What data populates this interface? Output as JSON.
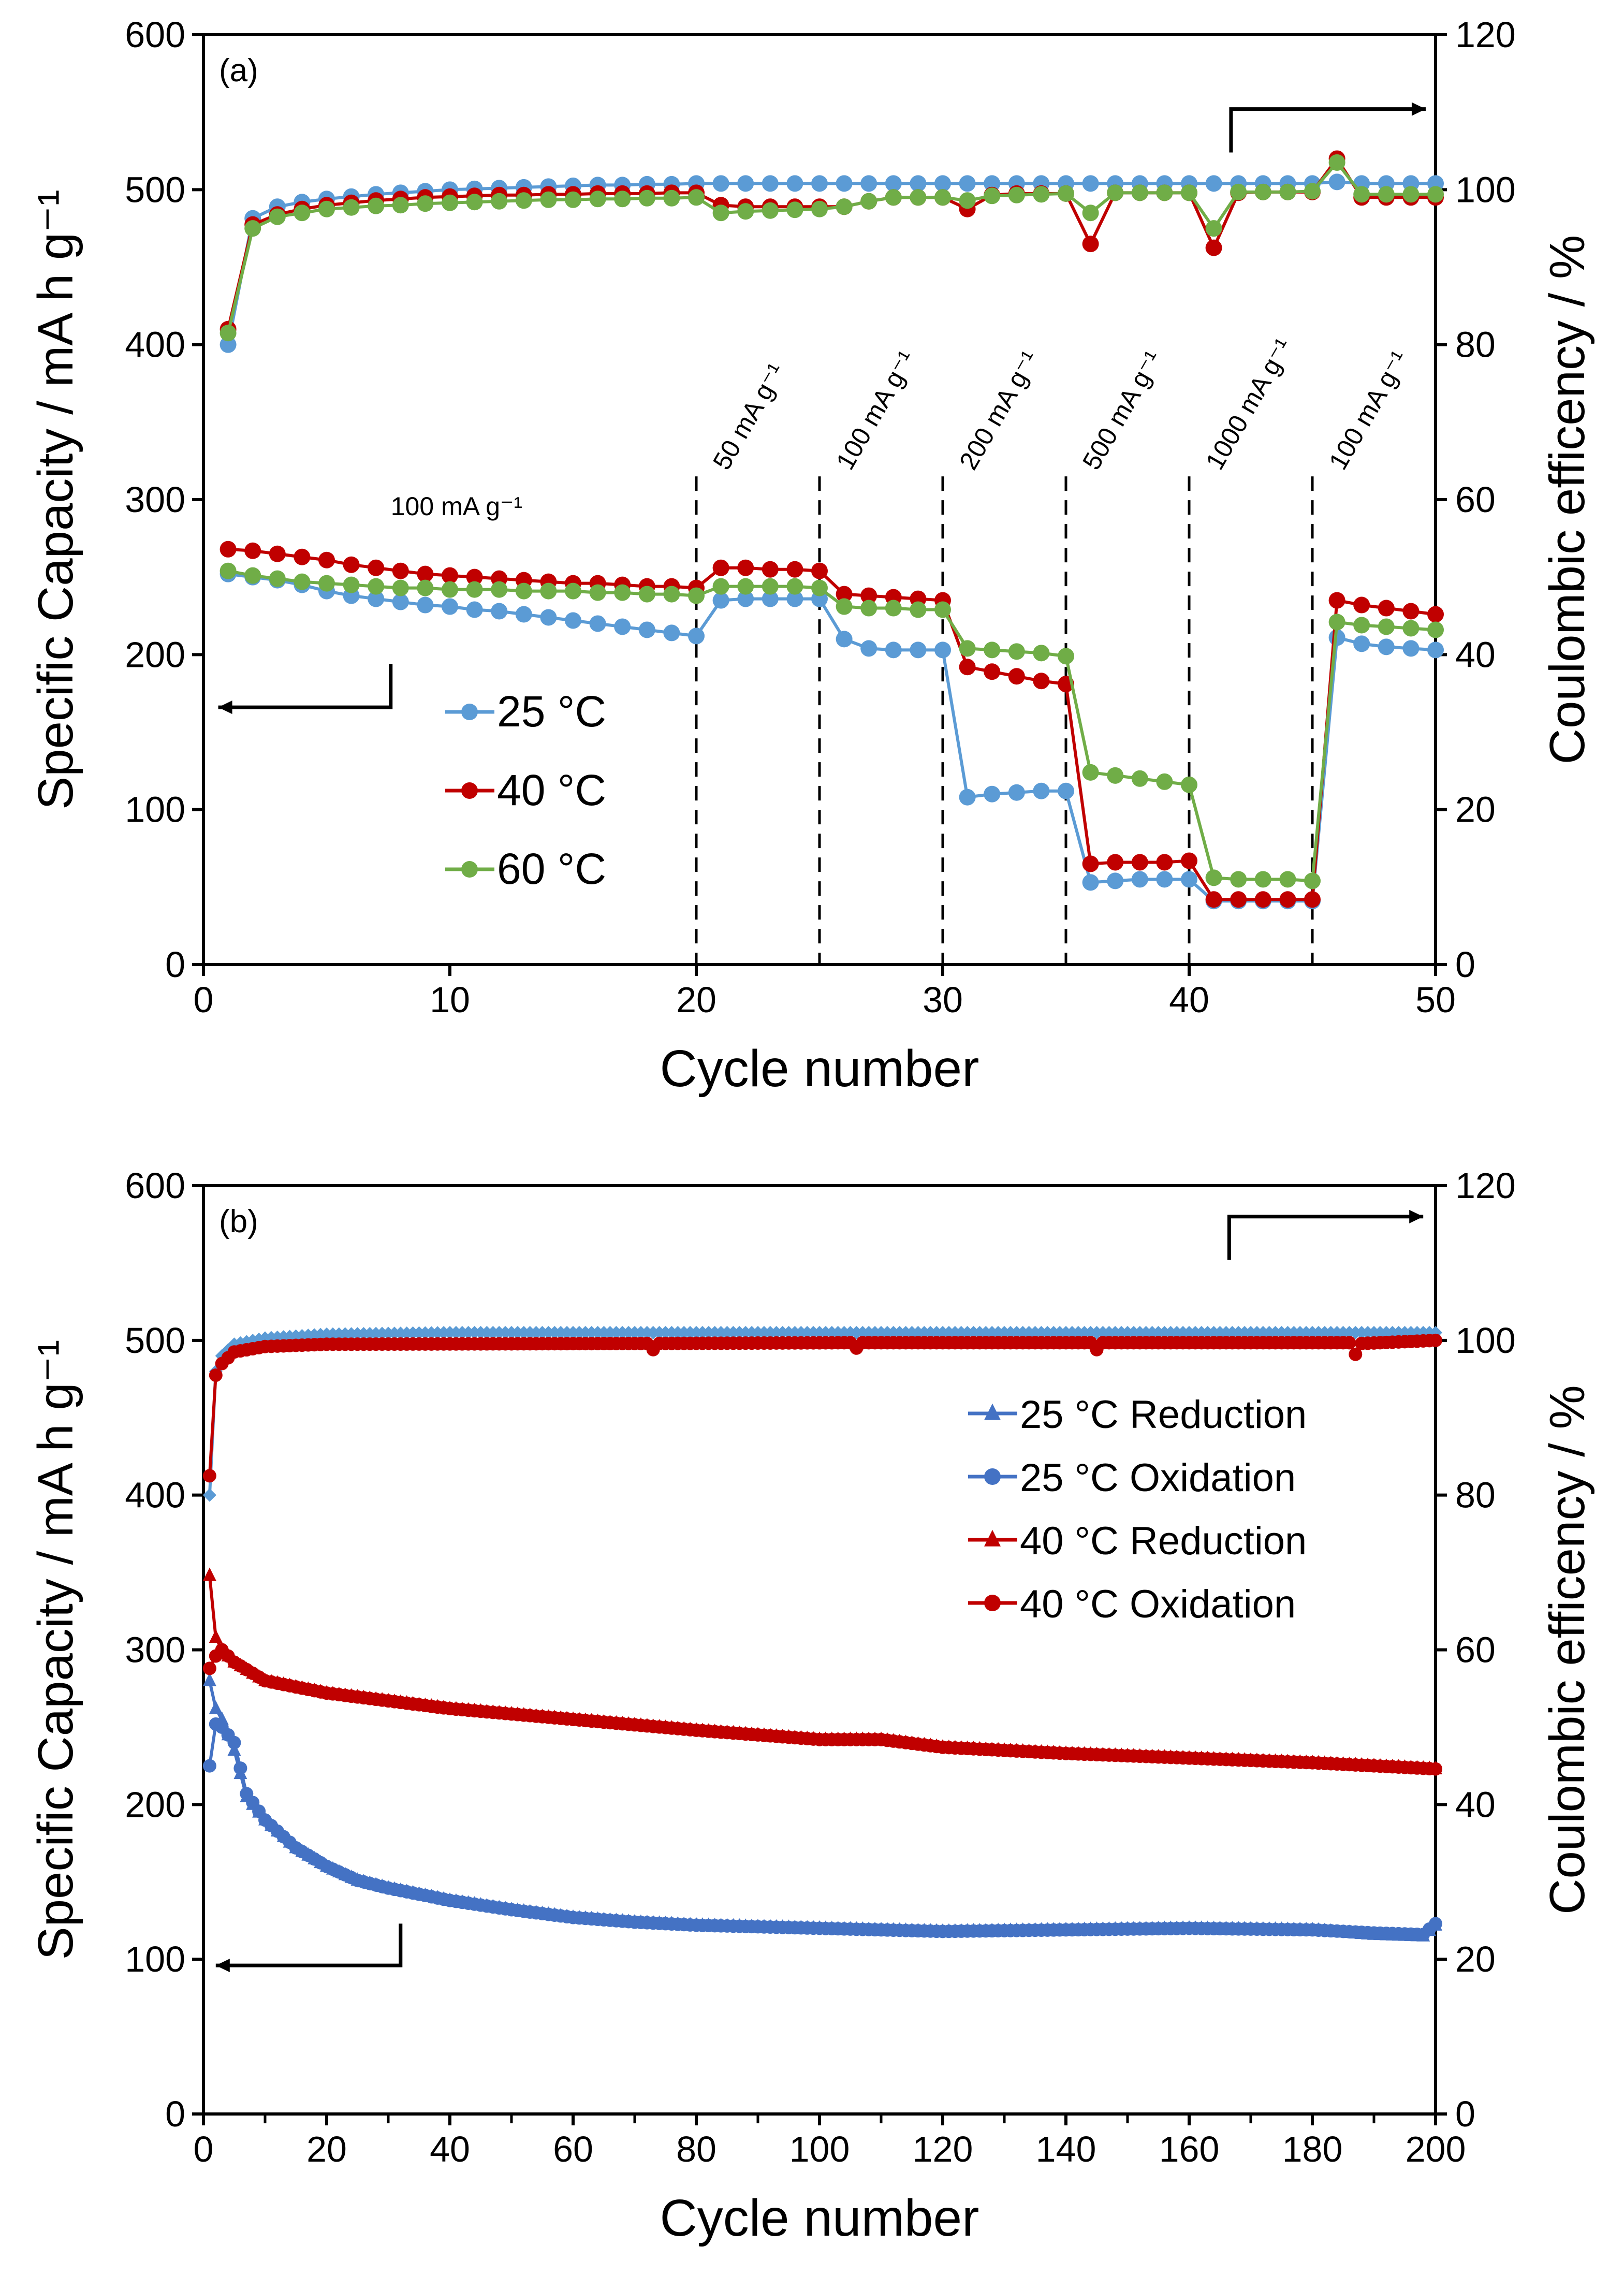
{
  "chart_data": [
    {
      "type": "line",
      "panel_label": "(a)",
      "xlabel": "Cycle number",
      "ylabel": "Specific Capacity / mA h g⁻¹",
      "y2label": "Coulombic efficency / %",
      "xlim": [
        0,
        50
      ],
      "ylim": [
        0,
        600
      ],
      "y2lim": [
        0,
        120
      ],
      "xticks": [
        0,
        10,
        20,
        30,
        40,
        50
      ],
      "yticks": [
        0,
        100,
        200,
        300,
        400,
        500,
        600
      ],
      "y2ticks": [
        0,
        20,
        40,
        60,
        80,
        100,
        120
      ],
      "legend_position": "center-left",
      "rate_annotation": "100 mA g⁻¹",
      "rate_boundaries": [
        20,
        25,
        30,
        35,
        40,
        45
      ],
      "rate_labels": [
        "50 mA g⁻¹",
        "100 mA g⁻¹",
        "200 mA g⁻¹",
        "500 mA g⁻¹",
        "1000 mA g⁻¹",
        "100 mA g⁻¹"
      ],
      "series": [
        {
          "name": "25 °C",
          "color": "#5B9BD5",
          "axis": "left",
          "marker": "circle",
          "values": [
            252,
            250,
            248,
            245,
            241,
            238,
            236,
            234,
            232,
            231,
            229,
            228,
            226,
            224,
            222,
            220,
            218,
            216,
            214,
            212,
            235,
            236,
            236,
            236,
            236,
            210,
            204,
            203,
            203,
            203,
            108,
            110,
            111,
            112,
            112,
            53,
            54,
            55,
            55,
            55,
            41,
            41,
            41,
            41,
            41,
            211,
            207,
            205,
            204,
            203
          ]
        },
        {
          "name": "40 °C",
          "color": "#C00000",
          "axis": "left",
          "marker": "circle",
          "values": [
            268,
            267,
            265,
            263,
            261,
            258,
            256,
            254,
            252,
            251,
            250,
            249,
            248,
            247,
            246,
            246,
            245,
            244,
            244,
            243,
            256,
            256,
            255,
            255,
            254,
            239,
            238,
            237,
            236,
            235,
            192,
            189,
            186,
            183,
            181,
            65,
            66,
            66,
            66,
            67,
            42,
            42,
            42,
            42,
            42,
            235,
            232,
            230,
            228,
            226
          ]
        },
        {
          "name": "60 °C",
          "color": "#70AD47",
          "axis": "left",
          "marker": "circle",
          "values": [
            254,
            251,
            249,
            247,
            246,
            245,
            244,
            243,
            243,
            242,
            242,
            242,
            241,
            241,
            241,
            240,
            240,
            239,
            239,
            238,
            244,
            244,
            244,
            244,
            243,
            231,
            230,
            230,
            229,
            229,
            204,
            203,
            202,
            201,
            199,
            124,
            122,
            120,
            118,
            116,
            56,
            55,
            55,
            55,
            54,
            221,
            219,
            218,
            217,
            216
          ]
        },
        {
          "name": "25 °C CE",
          "color": "#5B9BD5",
          "axis": "right",
          "marker": "circle",
          "legend": false,
          "values": [
            80,
            96.3,
            97.8,
            98.4,
            98.8,
            99.1,
            99.4,
            99.6,
            99.8,
            100,
            100.1,
            100.2,
            100.3,
            100.4,
            100.5,
            100.6,
            100.6,
            100.7,
            100.7,
            100.8,
            100.8,
            100.8,
            100.8,
            100.8,
            100.8,
            100.8,
            100.8,
            100.8,
            100.8,
            100.8,
            100.8,
            100.8,
            100.8,
            100.8,
            100.8,
            100.8,
            100.8,
            100.8,
            100.8,
            100.8,
            100.8,
            100.8,
            100.8,
            100.8,
            100.8,
            101,
            100.8,
            100.8,
            100.8,
            100.8
          ]
        },
        {
          "name": "40 °C CE",
          "color": "#C00000",
          "axis": "right",
          "marker": "circle",
          "legend": false,
          "values": [
            82,
            95.5,
            96.8,
            97.5,
            98,
            98.3,
            98.6,
            98.8,
            99,
            99.1,
            99.2,
            99.3,
            99.3,
            99.4,
            99.4,
            99.5,
            99.5,
            99.5,
            99.6,
            99.6,
            98,
            97.8,
            97.8,
            97.8,
            97.8,
            97.8,
            98.5,
            99,
            99,
            99,
            97.5,
            99.3,
            99.5,
            99.5,
            99.5,
            93,
            99.6,
            99.6,
            99.6,
            99.6,
            92.5,
            99.6,
            99.7,
            99.7,
            99.7,
            104,
            99,
            99,
            99,
            99
          ]
        },
        {
          "name": "60 °C CE",
          "color": "#70AD47",
          "axis": "right",
          "marker": "circle",
          "legend": false,
          "values": [
            81.5,
            95,
            96.5,
            97,
            97.5,
            97.7,
            97.9,
            98,
            98.2,
            98.3,
            98.4,
            98.5,
            98.6,
            98.7,
            98.7,
            98.8,
            98.8,
            98.9,
            98.9,
            99,
            97,
            97.2,
            97.3,
            97.4,
            97.5,
            97.8,
            98.5,
            99,
            99,
            99,
            98.6,
            99.2,
            99.3,
            99.4,
            99.5,
            97,
            99.6,
            99.6,
            99.6,
            99.6,
            95,
            99.7,
            99.7,
            99.7,
            99.8,
            103.5,
            99.4,
            99.4,
            99.4,
            99.4
          ]
        }
      ]
    },
    {
      "type": "line",
      "panel_label": "(b)",
      "xlabel": "Cycle number",
      "ylabel": "Specific Capacity / mA h g⁻¹",
      "y2label": "Coulombic efficency / %",
      "xlim": [
        0,
        200
      ],
      "ylim": [
        0,
        600
      ],
      "y2lim": [
        0,
        120
      ],
      "xticks": [
        0,
        20,
        40,
        60,
        80,
        100,
        120,
        140,
        160,
        180,
        200
      ],
      "yticks": [
        0,
        100,
        200,
        300,
        400,
        500,
        600
      ],
      "y2ticks": [
        0,
        20,
        40,
        60,
        80,
        100,
        120
      ],
      "legend_position": "top-right",
      "series": [
        {
          "name": "25 °C Reduction",
          "color": "#4472C4",
          "axis": "left",
          "marker": "triangle",
          "x": [
            1,
            2,
            3,
            5,
            7,
            10,
            15,
            20,
            25,
            30,
            40,
            50,
            60,
            70,
            80,
            100,
            120,
            140,
            160,
            180,
            190,
            198,
            200
          ],
          "values": [
            280,
            262,
            255,
            235,
            205,
            190,
            172,
            160,
            151,
            146,
            138,
            132,
            127,
            124,
            122,
            120,
            118,
            119,
            120,
            119,
            116,
            115,
            122
          ]
        },
        {
          "name": "25 °C Oxidation",
          "color": "#4472C4",
          "axis": "left",
          "marker": "circle",
          "x": [
            1,
            2,
            3,
            5,
            7,
            10,
            15,
            20,
            25,
            30,
            40,
            50,
            60,
            70,
            80,
            100,
            120,
            140,
            160,
            180,
            190,
            198,
            200
          ],
          "values": [
            225,
            252,
            250,
            240,
            207,
            190,
            172,
            160,
            151,
            146,
            138,
            132,
            127,
            124,
            122,
            120,
            118,
            119,
            120,
            119,
            117,
            116,
            123
          ]
        },
        {
          "name": "40 °C Reduction",
          "color": "#C00000",
          "axis": "left",
          "marker": "triangle",
          "x": [
            1,
            2,
            3,
            5,
            10,
            20,
            40,
            60,
            80,
            100,
            110,
            120,
            140,
            160,
            180,
            200
          ],
          "values": [
            348,
            308,
            300,
            292,
            280,
            272,
            262,
            255,
            248,
            242,
            242,
            237,
            233,
            230,
            227,
            223
          ]
        },
        {
          "name": "40 °C Oxidation",
          "color": "#C00000",
          "axis": "left",
          "marker": "circle",
          "x": [
            1,
            2,
            3,
            5,
            10,
            20,
            40,
            60,
            80,
            100,
            110,
            120,
            140,
            160,
            180,
            200
          ],
          "values": [
            288,
            296,
            300,
            292,
            280,
            272,
            262,
            255,
            248,
            242,
            242,
            237,
            233,
            230,
            227,
            223
          ]
        },
        {
          "name": "25 °C CE",
          "color": "#5B9BD5",
          "axis": "right",
          "marker": "diamond",
          "legend": false,
          "x": [
            1,
            2,
            3,
            5,
            10,
            20,
            40,
            200
          ],
          "values": [
            80,
            96,
            98,
            99.5,
            100.3,
            100.8,
            101,
            101
          ]
        },
        {
          "name": "40 °C CE",
          "color": "#C00000",
          "axis": "right",
          "marker": "circle",
          "legend": false,
          "x": [
            1,
            2,
            3,
            5,
            10,
            20,
            72,
            73,
            74,
            105,
            106,
            107,
            144,
            145,
            146,
            186,
            187,
            188,
            200
          ],
          "values": [
            82.5,
            95.5,
            97,
            98.5,
            99.2,
            99.5,
            99.6,
            98.8,
            99.6,
            99.7,
            99,
            99.7,
            99.7,
            98.8,
            99.7,
            99.7,
            98.2,
            99.6,
            100
          ]
        }
      ]
    }
  ]
}
